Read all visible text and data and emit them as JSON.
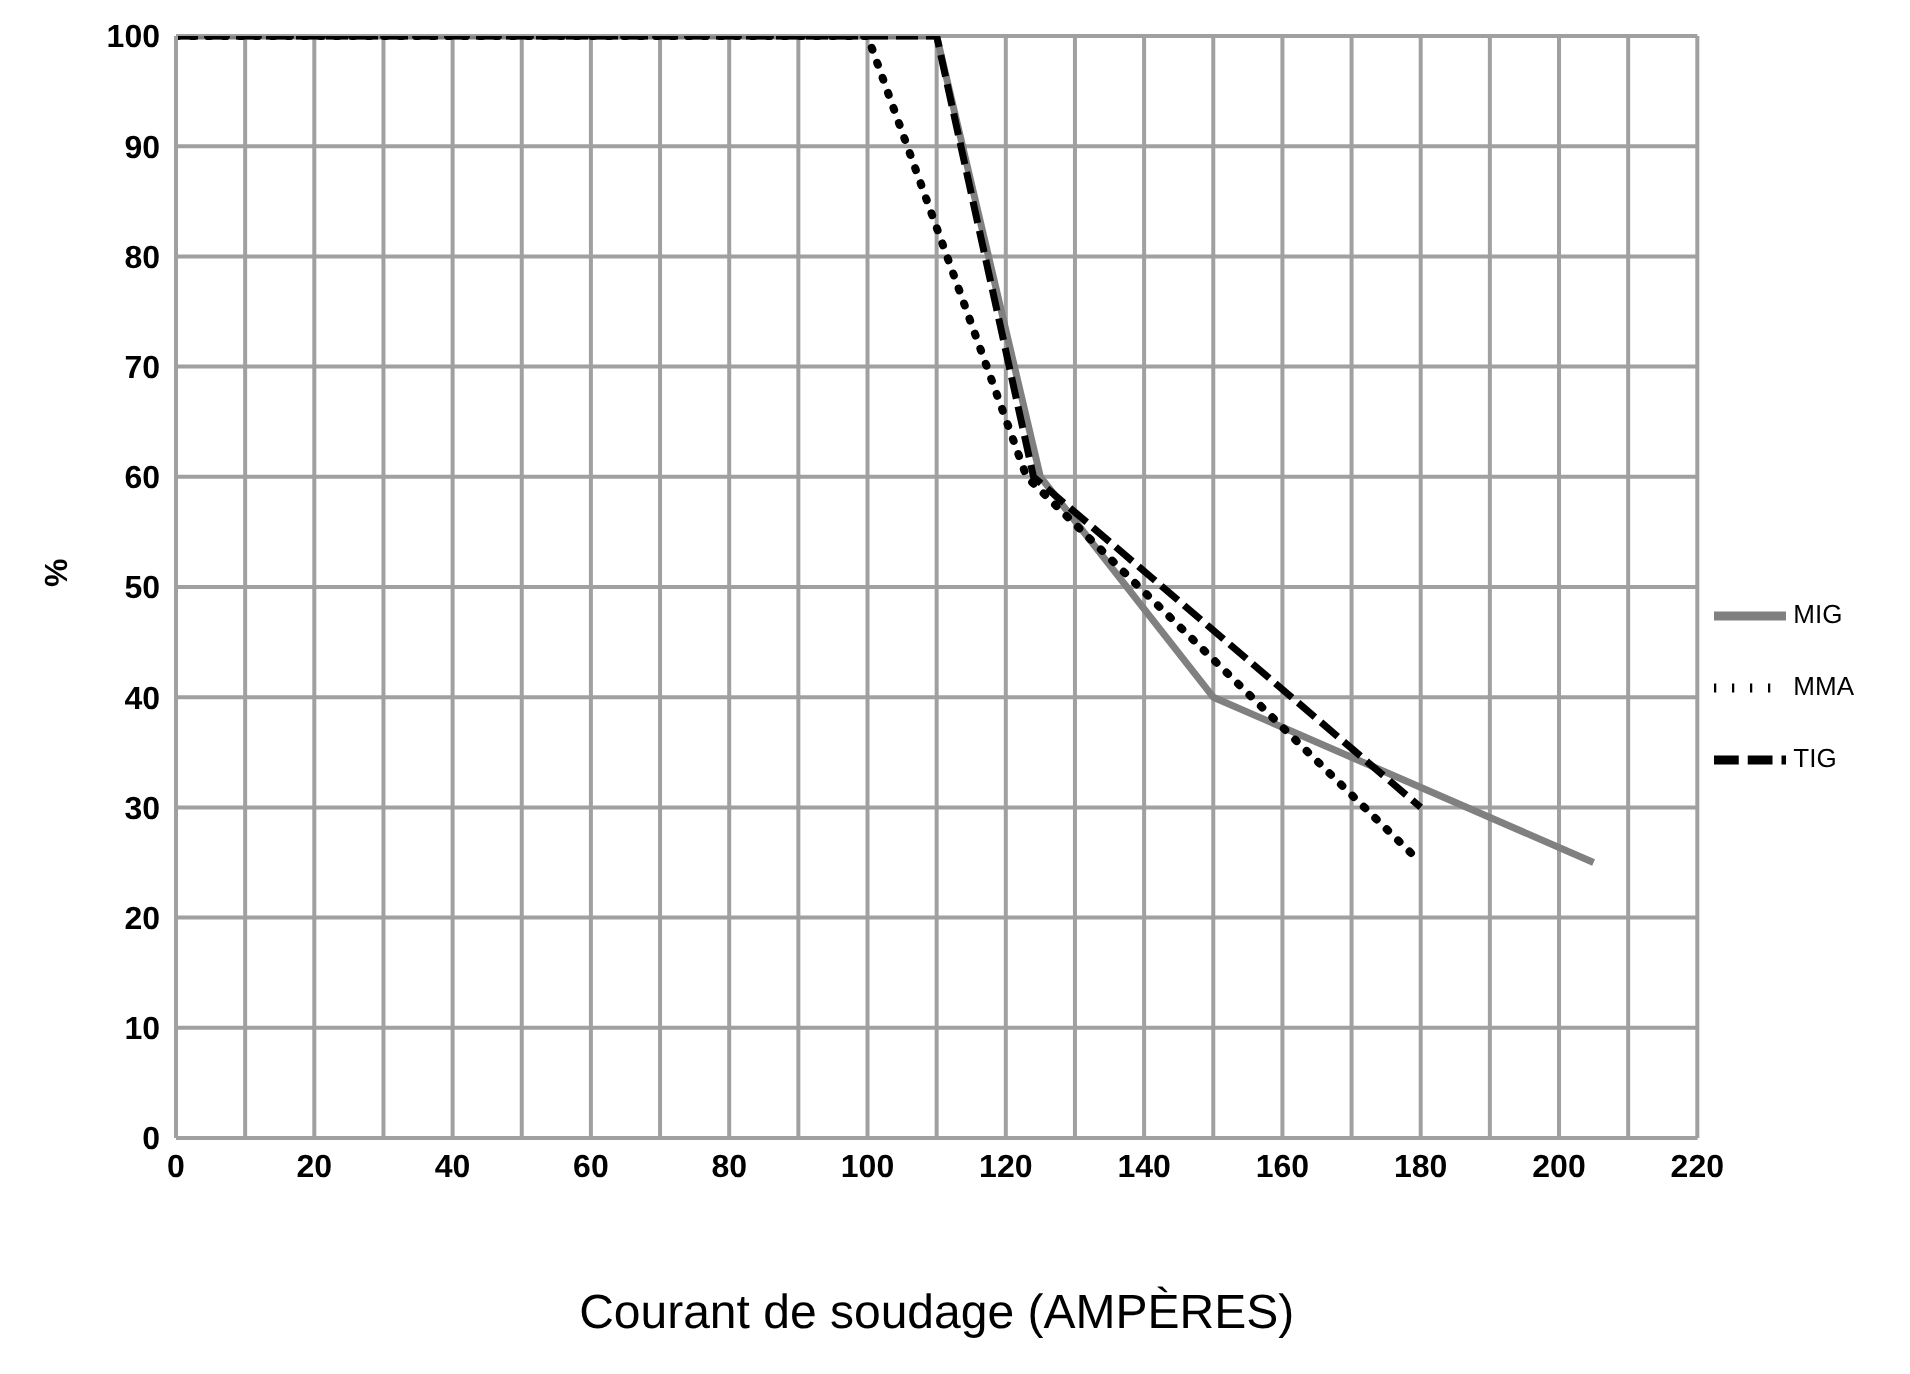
{
  "chart_data": {
    "type": "line",
    "xlabel": "Courant de soudage (AMPÈRES)",
    "ylabel": "%",
    "xlim": [
      0,
      220
    ],
    "xticks": [
      0,
      {
        "value": 10,
        "label": null
      },
      20,
      {
        "value": 30,
        "label": null
      },
      40,
      {
        "value": 50,
        "label": null
      },
      60,
      {
        "value": 70,
        "label": null
      },
      80,
      {
        "value": 90,
        "label": null
      },
      100,
      {
        "value": 110,
        "label": null
      },
      120,
      {
        "value": 130,
        "label": null
      },
      140,
      {
        "value": 150,
        "label": null
      },
      160,
      {
        "value": 170,
        "label": null
      },
      180,
      {
        "value": 190,
        "label": null
      },
      200,
      {
        "value": 210,
        "label": null
      },
      220
    ],
    "ylim": [
      0,
      100
    ],
    "yticks": [
      0,
      10,
      20,
      30,
      40,
      50,
      60,
      70,
      80,
      90,
      100
    ],
    "grid": true,
    "legend": "right",
    "marker": "none",
    "series": [
      {
        "name": "MIG",
        "color": "#808080",
        "line_style": "solid",
        "x": [
          0,
          110,
          125,
          150,
          205
        ],
        "values": [
          100,
          100,
          60,
          40,
          25
        ]
      },
      {
        "name": "MMA",
        "color": "#000000",
        "line_style": "dotted",
        "x": [
          0,
          100,
          123,
          180
        ],
        "values": [
          100,
          100,
          60,
          25
        ]
      },
      {
        "name": "TIG",
        "color": "#000000",
        "line_style": "dashed",
        "x": [
          0,
          110,
          124,
          180
        ],
        "values": [
          100,
          100,
          60,
          30
        ]
      }
    ]
  }
}
